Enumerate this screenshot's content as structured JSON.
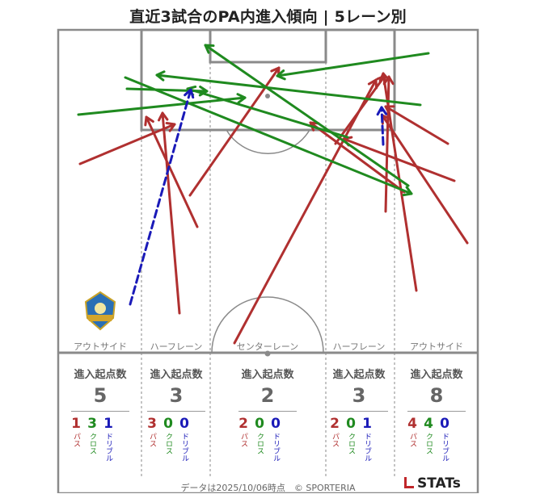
{
  "title": "直近3試合のPA内進入傾向 | 5レーン別",
  "colors": {
    "pass": "#b03030",
    "cross": "#1f8a1f",
    "dribble": "#1a1ab8",
    "line": "#8a8a8a"
  },
  "lanes": [
    {
      "label": "アウトサイド",
      "head": "進入起点数",
      "total": "5",
      "pass": "1",
      "cross": "3",
      "dribble": "1"
    },
    {
      "label": "ハーフレーン",
      "head": "進入起点数",
      "total": "3",
      "pass": "3",
      "cross": "0",
      "dribble": "0"
    },
    {
      "label": "センターレーン",
      "head": "進入起点数",
      "total": "2",
      "pass": "2",
      "cross": "0",
      "dribble": "0"
    },
    {
      "label": "ハーフレーン",
      "head": "進入起点数",
      "total": "3",
      "pass": "2",
      "cross": "0",
      "dribble": "1"
    },
    {
      "label": "アウトサイド",
      "head": "進入起点数",
      "total": "8",
      "pass": "4",
      "cross": "4",
      "dribble": "0"
    }
  ],
  "type_labels": {
    "pass": "パス",
    "cross": "クロス",
    "dribble": "ドリブル"
  },
  "footer": "データは2025/10/06時点　© SPORTERIA",
  "brand": "STATs",
  "logo_icon": "club-emblem-icon",
  "chart_data": {
    "type": "scatter",
    "title": "直近3試合のPA内進入傾向 | 5レーン別",
    "series": [
      {
        "name": "パス",
        "segments": [
          [
            99,
            203,
            216,
            154
          ],
          [
            244,
            281,
            181,
            145
          ],
          [
            222,
            388,
            201,
            140
          ],
          [
            235,
            242,
            345,
            84
          ],
          [
            290,
            425,
            465,
            99
          ],
          [
            415,
            178,
            476,
            94
          ],
          [
            515,
            360,
            474,
            91
          ],
          [
            578,
            301,
            473,
            143
          ],
          [
            554,
            178,
            477,
            132
          ],
          [
            562,
            224,
            425,
            172
          ],
          [
            477,
            262,
            481,
            95
          ],
          [
            500,
            238,
            384,
            152
          ]
        ]
      },
      {
        "name": "クロス",
        "segments": [
          [
            97,
            142,
            303,
            121
          ],
          [
            155,
            96,
            509,
            240
          ],
          [
            157,
            110,
            256,
            113
          ],
          [
            530,
            66,
            343,
            94
          ],
          [
            520,
            130,
            194,
            93
          ],
          [
            505,
            230,
            254,
            56
          ],
          [
            430,
            170,
            232,
            110
          ]
        ]
      },
      {
        "name": "ドリブル",
        "segments": [
          [
            161,
            377,
            236,
            111
          ],
          [
            474,
            179,
            472,
            133
          ]
        ]
      }
    ]
  }
}
